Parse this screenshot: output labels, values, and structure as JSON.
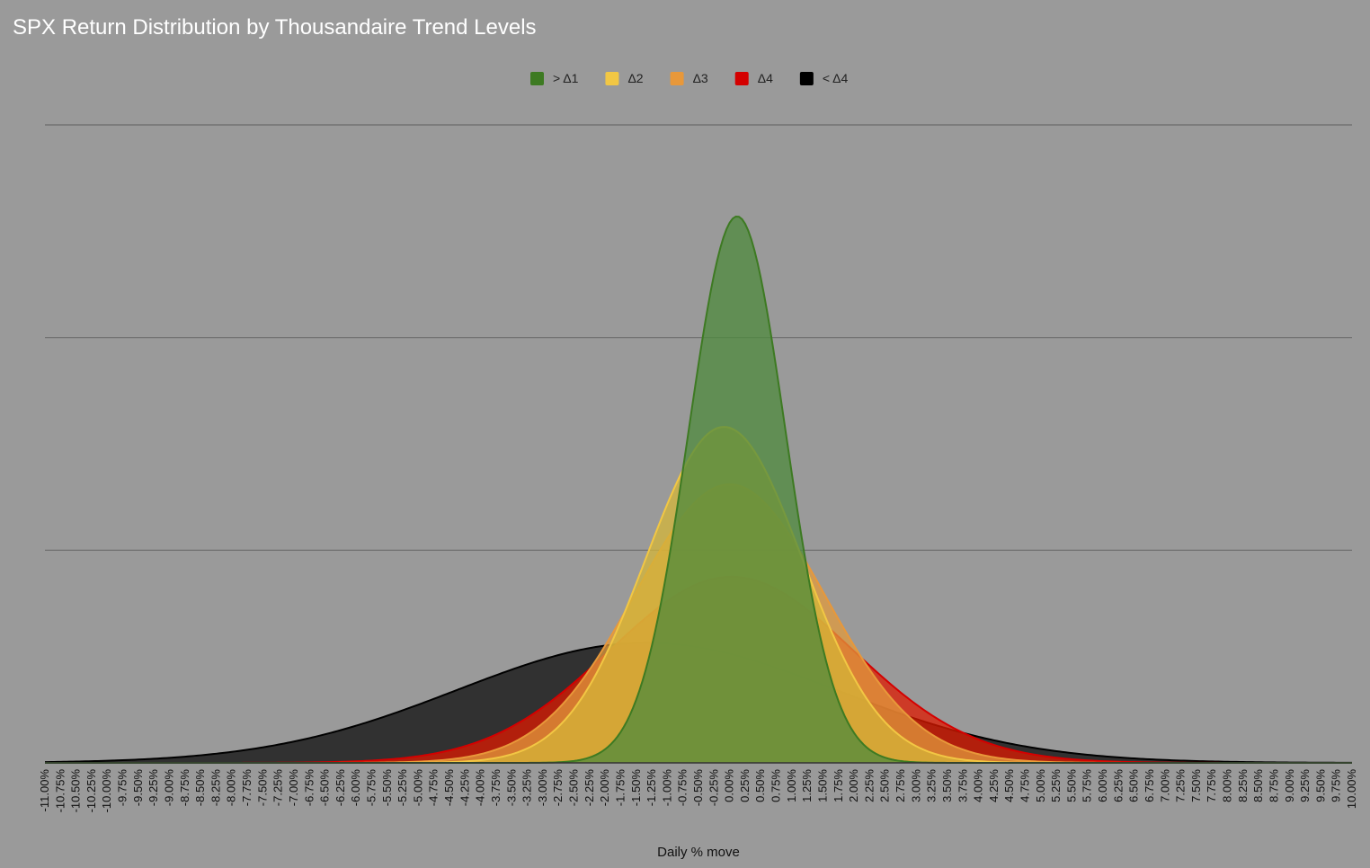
{
  "chart_data": {
    "type": "area",
    "title": "SPX Return Distribution by Thousandaire Trend Levels",
    "xlabel": "Daily % move",
    "ylabel": "",
    "x_ticks": [
      "-11.00%",
      "-10.75%",
      "-10.50%",
      "-10.25%",
      "-10.00%",
      "-9.75%",
      "-9.50%",
      "-9.25%",
      "-9.00%",
      "-8.75%",
      "-8.50%",
      "-8.25%",
      "-8.00%",
      "-7.75%",
      "-7.50%",
      "-7.25%",
      "-7.00%",
      "-6.75%",
      "-6.50%",
      "-6.25%",
      "-6.00%",
      "-5.75%",
      "-5.50%",
      "-5.25%",
      "-5.00%",
      "-4.75%",
      "-4.50%",
      "-4.25%",
      "-4.00%",
      "-3.75%",
      "-3.50%",
      "-3.25%",
      "-3.00%",
      "-2.75%",
      "-2.50%",
      "-2.25%",
      "-2.00%",
      "-1.75%",
      "-1.50%",
      "-1.25%",
      "-1.00%",
      "-0.75%",
      "-0.50%",
      "-0.25%",
      "0.00%",
      "0.25%",
      "0.50%",
      "0.75%",
      "1.00%",
      "1.25%",
      "1.50%",
      "1.75%",
      "2.00%",
      "2.25%",
      "2.50%",
      "2.75%",
      "3.00%",
      "3.25%",
      "3.50%",
      "3.75%",
      "4.00%",
      "4.25%",
      "4.50%",
      "4.75%",
      "5.00%",
      "5.25%",
      "5.50%",
      "5.75%",
      "6.00%",
      "6.25%",
      "6.50%",
      "6.75%",
      "7.00%",
      "7.25%",
      "7.50%",
      "7.75%",
      "8.00%",
      "8.25%",
      "8.50%",
      "8.75%",
      "9.00%",
      "9.25%",
      "9.50%",
      "9.75%",
      "10.00%"
    ],
    "xlim": [
      -11,
      10
    ],
    "ylim": [
      0,
      0.6
    ],
    "gridlines": [
      0.2,
      0.4,
      0.6
    ],
    "grid": true,
    "legend_position": "top-center",
    "series": [
      {
        "name": "> Δ1",
        "mean": 0.12,
        "sd": 0.78,
        "color": "#3d7a22",
        "fill": "#4d8a3c"
      },
      {
        "name": "Δ2",
        "mean": -0.09,
        "sd": 1.26,
        "color": "#f2c744",
        "fill": "#d4b638"
      },
      {
        "name": "Δ3",
        "mean": 0.0,
        "sd": 1.52,
        "color": "#e8983a",
        "fill": "#e09a3c"
      },
      {
        "name": "Δ4",
        "mean": 0.03,
        "sd": 1.95,
        "color": "#d40000",
        "fill": "#dd1a00"
      },
      {
        "name": "< Δ4",
        "mean": -1.33,
        "sd": 3.05,
        "color": "#000000",
        "fill": "#1e1e1e"
      }
    ],
    "peaks": [
      0.514,
      0.316,
      0.262,
      0.175,
      0.113
    ]
  }
}
